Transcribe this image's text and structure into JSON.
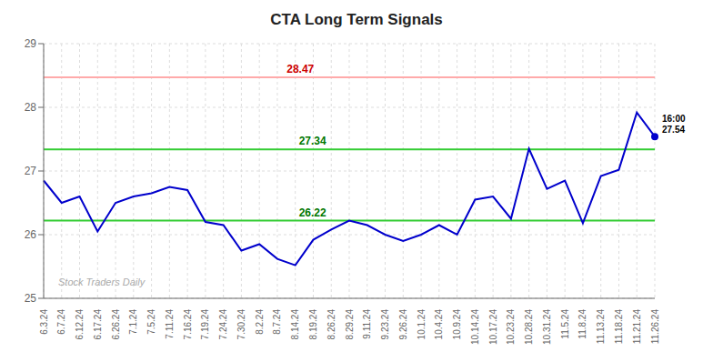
{
  "chart_data": {
    "type": "line",
    "title": "CTA Long Term Signals",
    "categories": [
      "6.3.24",
      "6.7.24",
      "6.12.24",
      "6.17.24",
      "6.26.24",
      "7.1.24",
      "7.5.24",
      "7.11.24",
      "7.16.24",
      "7.19.24",
      "7.24.24",
      "7.30.24",
      "8.2.24",
      "8.7.24",
      "8.14.24",
      "8.19.24",
      "8.26.24",
      "8.29.24",
      "9.11.24",
      "9.23.24",
      "9.26.24",
      "10.1.24",
      "10.4.24",
      "10.9.24",
      "10.14.24",
      "10.17.24",
      "10.23.24",
      "10.28.24",
      "10.31.24",
      "11.5.24",
      "11.8.24",
      "11.13.24",
      "11.18.24",
      "11.21.24",
      "11.26.24"
    ],
    "values": [
      26.85,
      26.5,
      26.6,
      26.05,
      26.5,
      26.6,
      26.65,
      26.75,
      26.7,
      26.2,
      26.15,
      25.75,
      25.85,
      25.62,
      25.52,
      25.92,
      26.08,
      26.22,
      26.15,
      26.0,
      25.9,
      26.0,
      26.15,
      26.0,
      26.55,
      26.6,
      26.25,
      27.35,
      26.72,
      26.85,
      26.18,
      26.92,
      27.02,
      27.92,
      27.54
    ],
    "color": "#0000cc",
    "ylim": [
      25,
      29
    ],
    "yticks": [
      25,
      26,
      27,
      28,
      29
    ],
    "grid": true,
    "reference_lines": [
      {
        "value": 28.47,
        "color": "#ffaaaa",
        "label_color": "#cc0000"
      },
      {
        "value": 27.34,
        "color": "#33cc33",
        "label_color": "#007700"
      },
      {
        "value": 26.22,
        "color": "#33cc33",
        "label_color": "#007700"
      }
    ],
    "annotations": [
      {
        "text": "16:00",
        "value": 27.54
      }
    ],
    "watermark": "Stock Traders Daily"
  }
}
